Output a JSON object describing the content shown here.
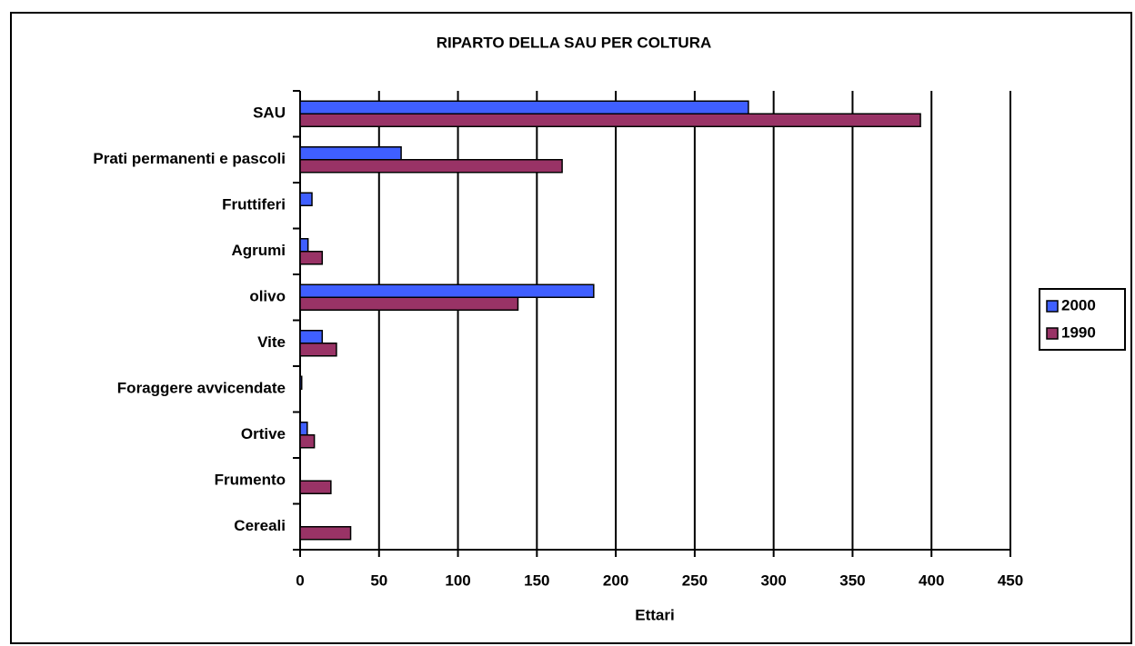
{
  "chart_data": {
    "type": "hbar",
    "title": "RIPARTO DELLA SAU PER COLTURA",
    "x_label": "Ettari",
    "categories": [
      "SAU",
      "Prati permanenti e pascoli",
      "Fruttiferi",
      "Agrumi",
      "olivo",
      "Vite",
      "Foraggere avvicendate",
      "Ortive",
      "Frumento",
      "Cereali"
    ],
    "series": [
      {
        "name": "2000",
        "color": "#3f5fff",
        "values": [
          284,
          64,
          7.5,
          5,
          186,
          14,
          1,
          4.5,
          0,
          0
        ]
      },
      {
        "name": "1990",
        "color": "#993366",
        "values": [
          393,
          166,
          0,
          14,
          138,
          23,
          0,
          9,
          19.5,
          32
        ]
      }
    ],
    "xlim": [
      0,
      450
    ],
    "xticks": [
      0,
      50,
      100,
      150,
      200,
      250,
      300,
      350,
      400,
      450
    ],
    "grid": true,
    "legend": "right"
  }
}
